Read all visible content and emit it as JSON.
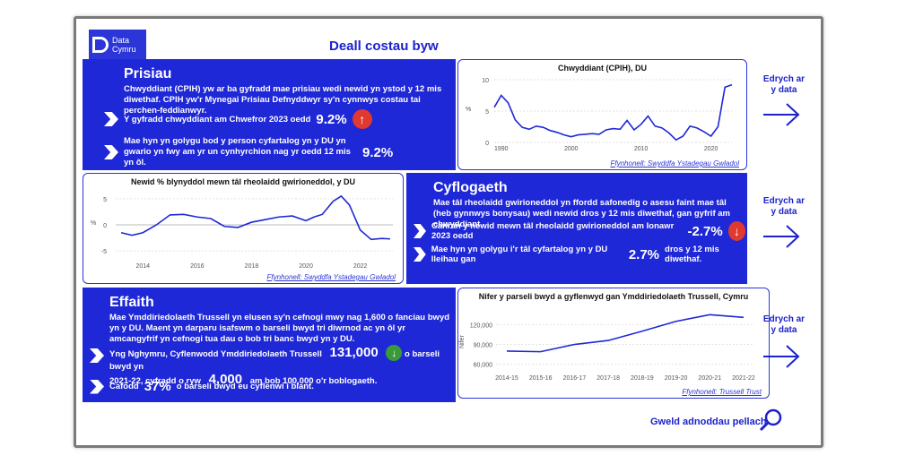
{
  "logo": {
    "line1": "Data",
    "line2": "Cymru"
  },
  "page_title": "Deall costau byw",
  "prices": {
    "heading": "Prisiau",
    "desc": "Chwyddiant (CPIH) yw ar ba gyfradd mae prisiau wedi newid yn ystod y 12 mis diwethaf. CPIH yw'r Mynegai Prisiau Defnyddwyr sy'n cynnwys costau tai perchen-feddianwyr.",
    "row1_text": "Y gyfradd chwyddiant am Chwefror 2023 oedd",
    "row1_value": "9.2%",
    "row2_text": "Mae hyn yn golygu bod y person cyfartalog yn y DU yn gwario yn fwy am yr un cynhyrchion nag yr oedd 12 mis yn ôl.",
    "row2_value": "9.2%",
    "chart_title": "Chwyddiant (CPIH), DU",
    "source": "Ffynhonell: Swyddfa Ystadegau Gwladol"
  },
  "employment": {
    "heading": "Cyflogaeth",
    "desc": "Mae tâl rheolaidd gwirioneddol yn ffordd safonedig o asesu faint mae tâl (heb gynnwys bonysau) wedi newid dros y 12 mis diwethaf, gan gyfrif am chwyddiant.",
    "row1_text": "Canran y newid mewn tâl rheolaidd gwirioneddol am Ionawr 2023 oedd",
    "row1_value": "-2.7%",
    "row2_text_a": "Mae hyn yn golygu i'r tâl cyfartalog yn y DU lleihau gan",
    "row2_value": "2.7%",
    "row2_text_b": "dros y 12 mis diwethaf.",
    "chart_title": "Newid % blynyddol mewn tâl rheolaidd gwirioneddol, y DU",
    "source": "Ffynhonell: Swyddfa Ystadegau Gwladol"
  },
  "impact": {
    "heading": "Effaith",
    "desc": "Mae Ymddiriedolaeth Trussell yn elusen sy'n cefnogi mwy nag 1,600 o fanciau bwyd yn y DU. Maent yn darparu isafswm o barseli bwyd tri diwrnod ac yn ôl yr amcangyfrif yn cefnogi tua dau o bob tri banc bwyd yn y DU.",
    "row1_text_a": "Yng Nghymru, Cyflenwodd Ymddiriedolaeth Trussell",
    "row1_value": "131,000",
    "row1_text_b": "o barseli bwyd yn",
    "row1_text_c": "2021-22, cyfradd o ryw",
    "row1_value2": "4,000",
    "row1_text_d": "am bob 100,000 o'r boblogaeth.",
    "row2_text_a": "Cafodd",
    "row2_value": "37%",
    "row2_text_b": "o barseli bwyd eu cyflenwi i blant.",
    "chart_title": "Nifer y parseli bwyd a gyflenwyd gan Ymddiriedolaeth Trussell, Cymru",
    "source": "Ffynhonell: Trussell Trust"
  },
  "side_link": "Edrych ar y data",
  "more": "Gweld adnoddau pellach",
  "colors": {
    "brand": "#1f28d6",
    "up": "#e0392f",
    "down": "#3a9a3a"
  },
  "chart_data": [
    {
      "type": "line",
      "title": "Chwyddiant (CPIH), DU",
      "ylabel": "%",
      "x_ticks": [
        "1990",
        "2000",
        "2010",
        "2020"
      ],
      "y_ticks": [
        "0",
        "5",
        "10"
      ],
      "ylim": [
        0,
        10
      ],
      "xlim": [
        1989,
        2023
      ],
      "x": [
        1989,
        1990,
        1991,
        1992,
        1993,
        1994,
        1995,
        1996,
        1997,
        1998,
        1999,
        2000,
        2001,
        2002,
        2003,
        2004,
        2005,
        2006,
        2007,
        2008,
        2009,
        2010,
        2011,
        2012,
        2013,
        2014,
        2015,
        2016,
        2017,
        2018,
        2019,
        2020,
        2021,
        2022,
        2023
      ],
      "y": [
        5.6,
        7.5,
        6.3,
        3.6,
        2.4,
        2.1,
        2.6,
        2.4,
        1.9,
        1.6,
        1.2,
        0.9,
        1.2,
        1.3,
        1.4,
        1.3,
        2.0,
        2.2,
        2.1,
        3.5,
        2.0,
        2.9,
        4.2,
        2.6,
        2.3,
        1.5,
        0.4,
        1.0,
        2.6,
        2.3,
        1.7,
        1.0,
        2.5,
        8.8,
        9.2
      ]
    },
    {
      "type": "line",
      "title": "Newid % blynyddol mewn tâl rheolaidd gwirioneddol, y DU",
      "ylabel": "%",
      "x_ticks": [
        "2014",
        "2016",
        "2018",
        "2020",
        "2022"
      ],
      "y_ticks": [
        "5",
        "0",
        "-5"
      ],
      "ylim": [
        -6,
        6
      ],
      "xlim": [
        2013,
        2023.2
      ],
      "x": [
        2013.2,
        2013.6,
        2014,
        2014.5,
        2015,
        2015.5,
        2016,
        2016.5,
        2017,
        2017.5,
        2018,
        2018.5,
        2019,
        2019.5,
        2020,
        2020.3,
        2020.6,
        2021,
        2021.3,
        2021.6,
        2022,
        2022.4,
        2022.8,
        2023.1
      ],
      "y": [
        -1.5,
        -2.0,
        -1.5,
        0.0,
        1.9,
        2.0,
        1.5,
        1.2,
        -0.3,
        -0.5,
        0.5,
        1.0,
        1.5,
        1.7,
        0.8,
        1.5,
        2.0,
        4.5,
        5.5,
        3.8,
        -1.0,
        -2.8,
        -2.6,
        -2.7
      ]
    },
    {
      "type": "line",
      "title": "Nifer y parseli bwyd a gyflenwyd gan Ymddiriedolaeth Trussell, Cymru",
      "ylabel": "Nifer",
      "categories": [
        "2014-15",
        "2015-16",
        "2016-17",
        "2017-18",
        "2018-19",
        "2019-20",
        "2020-21",
        "2021-22"
      ],
      "values": [
        80000,
        79000,
        90000,
        96000,
        110000,
        125000,
        135000,
        131000
      ],
      "y_ticks": [
        "60,000",
        "90,000",
        "120,000"
      ],
      "ylim": [
        50000,
        145000
      ]
    }
  ]
}
